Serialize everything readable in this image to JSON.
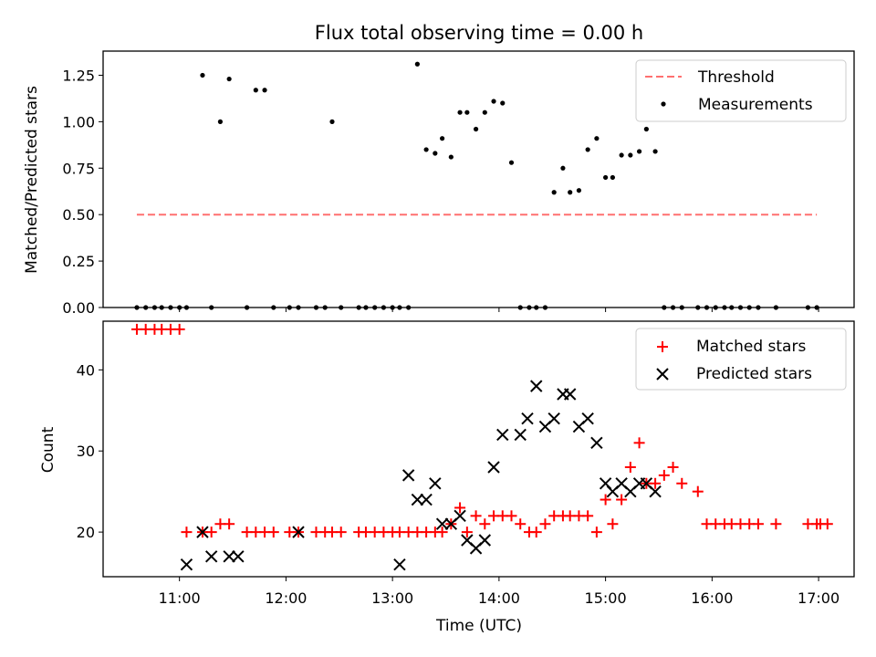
{
  "chart_data": [
    {
      "type": "scatter",
      "title": "Flux total observing time = 0.00 h",
      "xlabel": "",
      "ylabel": "Matched/Predicted stars",
      "xlim": [
        "10:17",
        "17:20"
      ],
      "ylim": [
        0,
        1.38
      ],
      "y_ticks": [
        0.0,
        0.25,
        0.5,
        0.75,
        1.0,
        1.25
      ],
      "y_tick_labels": [
        "0.00",
        "0.25",
        "0.50",
        "0.75",
        "1.00",
        "1.25"
      ],
      "legend_position": "upper right",
      "colors": {
        "threshold": "#ff7070",
        "measurements": "#000000"
      },
      "series": [
        {
          "name": "Threshold",
          "kind": "line",
          "style": "dashed",
          "x": [
            "10:36",
            "16:59"
          ],
          "y": [
            0.5,
            0.5
          ]
        },
        {
          "name": "Measurements",
          "kind": "points",
          "x": [
            "10:36",
            "10:41",
            "10:46",
            "10:50",
            "10:55",
            "11:00",
            "11:04",
            "11:13",
            "11:18",
            "11:23",
            "11:28",
            "11:38",
            "11:43",
            "11:48",
            "11:53",
            "12:02",
            "12:07",
            "12:17",
            "12:22",
            "12:26",
            "12:31",
            "12:41",
            "12:45",
            "12:50",
            "12:55",
            "13:00",
            "13:04",
            "13:09",
            "13:14",
            "13:19",
            "13:24",
            "13:28",
            "13:33",
            "13:38",
            "13:42",
            "13:47",
            "13:52",
            "13:57",
            "14:02",
            "14:07",
            "14:12",
            "14:17",
            "14:21",
            "14:26",
            "14:31",
            "14:36",
            "14:40",
            "14:45",
            "14:50",
            "14:55",
            "15:00",
            "15:04",
            "15:09",
            "15:14",
            "15:19",
            "15:23",
            "15:28",
            "15:33",
            "15:38",
            "15:43",
            "15:52",
            "15:57",
            "16:02",
            "16:07",
            "16:11",
            "16:16",
            "16:21",
            "16:26",
            "16:36",
            "16:54",
            "16:59"
          ],
          "y": [
            0,
            0,
            0,
            0,
            0,
            0,
            0,
            1.25,
            0,
            1.0,
            1.23,
            0,
            1.17,
            1.17,
            0,
            0,
            0,
            0,
            0,
            1.0,
            0,
            0,
            0,
            0,
            0,
            0,
            0,
            0,
            1.31,
            0.85,
            0.83,
            0.91,
            0.81,
            1.05,
            1.05,
            0.96,
            1.05,
            1.11,
            1.1,
            0.78,
            0,
            0,
            0,
            0,
            0.62,
            0.75,
            0.62,
            0.63,
            0.85,
            0.91,
            0.7,
            0.7,
            0.82,
            0.82,
            0.84,
            0.96,
            0.84,
            0,
            0,
            0,
            0,
            0,
            0,
            0,
            0,
            0,
            0,
            0,
            0,
            0,
            0
          ]
        }
      ]
    },
    {
      "type": "scatter",
      "title": "",
      "xlabel": "Time (UTC)",
      "ylabel": "Count",
      "xlim": [
        "10:17",
        "17:20"
      ],
      "ylim": [
        14.5,
        46
      ],
      "y_ticks": [
        20,
        30,
        40
      ],
      "x_ticks": [
        "11:00",
        "12:00",
        "13:00",
        "14:00",
        "15:00",
        "16:00",
        "17:00"
      ],
      "legend_position": "upper right",
      "colors": {
        "matched": "#ff0000",
        "predicted": "#000000"
      },
      "series": [
        {
          "name": "Matched stars",
          "marker": "+",
          "x": [
            "10:36",
            "10:41",
            "10:46",
            "10:50",
            "10:55",
            "11:00",
            "11:04",
            "11:13",
            "11:18",
            "11:23",
            "11:28",
            "11:38",
            "11:43",
            "11:48",
            "11:53",
            "12:02",
            "12:07",
            "12:17",
            "12:22",
            "12:26",
            "12:31",
            "12:41",
            "12:45",
            "12:50",
            "12:55",
            "13:00",
            "13:04",
            "13:09",
            "13:14",
            "13:19",
            "13:24",
            "13:28",
            "13:33",
            "13:38",
            "13:42",
            "13:47",
            "13:52",
            "13:57",
            "14:02",
            "14:07",
            "14:12",
            "14:17",
            "14:21",
            "14:26",
            "14:31",
            "14:36",
            "14:40",
            "14:45",
            "14:50",
            "14:55",
            "15:00",
            "15:04",
            "15:09",
            "15:14",
            "15:19",
            "15:23",
            "15:28",
            "15:33",
            "15:38",
            "15:43",
            "15:52",
            "15:57",
            "16:02",
            "16:07",
            "16:11",
            "16:16",
            "16:21",
            "16:26",
            "16:36",
            "16:54",
            "16:59",
            "17:01",
            "17:05"
          ],
          "y": [
            45,
            45,
            45,
            45,
            45,
            45,
            20,
            20,
            20,
            21,
            21,
            20,
            20,
            20,
            20,
            20,
            20,
            20,
            20,
            20,
            20,
            20,
            20,
            20,
            20,
            20,
            20,
            20,
            20,
            20,
            20,
            20,
            21,
            23,
            20,
            22,
            21,
            22,
            22,
            22,
            21,
            20,
            20,
            21,
            22,
            22,
            22,
            22,
            22,
            20,
            24,
            21,
            24,
            28,
            31,
            26,
            26,
            27,
            28,
            26,
            25,
            21,
            21,
            21,
            21,
            21,
            21,
            21,
            21,
            21,
            21,
            21,
            21
          ]
        },
        {
          "name": "Predicted stars",
          "marker": "x",
          "x": [
            "11:04",
            "11:13",
            "11:18",
            "11:28",
            "11:33",
            "12:07",
            "13:04",
            "13:09",
            "13:14",
            "13:19",
            "13:24",
            "13:28",
            "13:33",
            "13:38",
            "13:42",
            "13:47",
            "13:52",
            "13:57",
            "14:02",
            "14:12",
            "14:16",
            "14:21",
            "14:26",
            "14:31",
            "14:36",
            "14:40",
            "14:45",
            "14:50",
            "14:55",
            "15:00",
            "15:04",
            "15:09",
            "15:14",
            "15:19",
            "15:23",
            "15:28"
          ],
          "y": [
            16,
            20,
            17,
            17,
            17,
            20,
            16,
            27,
            24,
            24,
            26,
            21,
            21,
            22,
            19,
            18,
            19,
            28,
            32,
            32,
            34,
            38,
            33,
            34,
            37,
            37,
            33,
            34,
            31,
            26,
            25,
            26,
            25,
            26,
            26,
            25
          ]
        }
      ]
    }
  ]
}
